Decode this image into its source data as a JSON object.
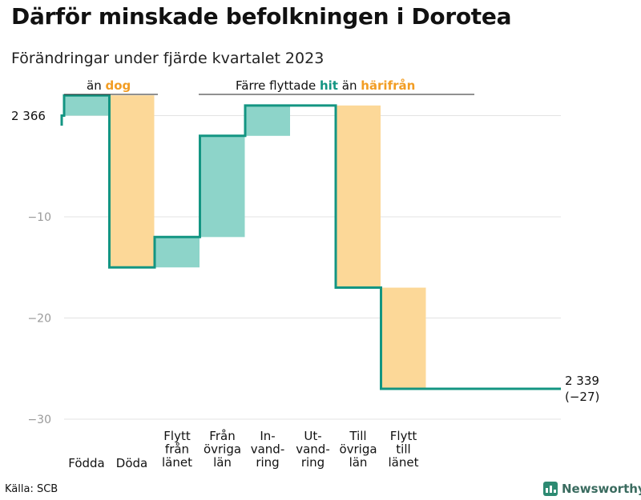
{
  "title": "Därför minskade befolkningen i Dorotea",
  "subtitle": "Förändringar under fjärde kvartalet 2023",
  "source": "Källa: SCB",
  "brand": "Newsworthy",
  "colors": {
    "increase": "#8dd4c9",
    "decrease": "#fcd898",
    "line": "#139582",
    "grid": "#e3e3e3",
    "hit": "#139582",
    "harifran": "#f29d24",
    "dog": "#f29d24"
  },
  "chart_data": {
    "type": "waterfall",
    "ylim": [
      -30,
      2
    ],
    "yticks": [
      -10,
      -20,
      -30
    ],
    "ytick_labels": [
      "−10",
      "−20",
      "−30"
    ],
    "start_label": "2 366",
    "end_label": [
      "2 339",
      "(−27)"
    ],
    "annotations": {
      "left": {
        "pre": "än ",
        "highlight": "dog"
      },
      "right": {
        "pre": "Färre flyttade ",
        "highlight1": "hit",
        "mid": " än ",
        "highlight2": "härifrån"
      }
    },
    "bars": [
      {
        "label": [
          "Födda"
        ],
        "start": 0,
        "end": 2,
        "kind": "increase"
      },
      {
        "label": [
          "Döda"
        ],
        "start": 2,
        "end": -15,
        "kind": "decrease"
      },
      {
        "label": [
          "Flytt",
          "från",
          "länet"
        ],
        "start": -15,
        "end": -12,
        "kind": "increase"
      },
      {
        "label": [
          "Från",
          "övriga",
          "län"
        ],
        "start": -12,
        "end": -2,
        "kind": "increase"
      },
      {
        "label": [
          "In-",
          "vand-",
          "ring"
        ],
        "start": -2,
        "end": 1,
        "kind": "increase"
      },
      {
        "label": [
          "Ut-",
          "vand-",
          "ring"
        ],
        "start": 1,
        "end": 1,
        "kind": "neutral"
      },
      {
        "label": [
          "Till",
          "övriga",
          "län"
        ],
        "start": 1,
        "end": -17,
        "kind": "decrease"
      },
      {
        "label": [
          "Flytt",
          "till",
          "länet"
        ],
        "start": -17,
        "end": -27,
        "kind": "decrease"
      }
    ],
    "end_value": -27
  }
}
